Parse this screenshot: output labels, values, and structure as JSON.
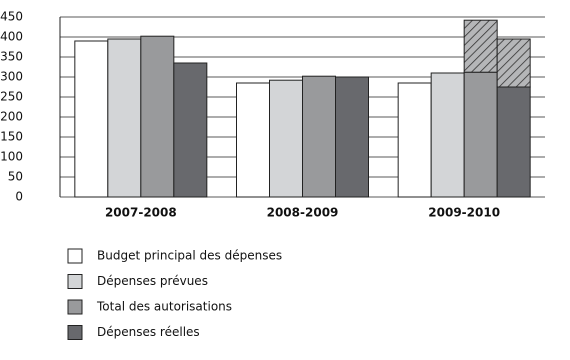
{
  "chart_data": {
    "type": "bar",
    "categories": [
      "2007-2008",
      "2008-2009",
      "2009-2010"
    ],
    "series": [
      {
        "name": "Budget principal des dépenses",
        "color": "#ffffff",
        "values": [
          390,
          285,
          285
        ]
      },
      {
        "name": "Dépenses prévues",
        "color": "#d3d5d7",
        "values": [
          395,
          292,
          310
        ]
      },
      {
        "name": "Total des autorisations",
        "color": "#999a9c",
        "values": [
          402,
          302,
          312
        ],
        "hatched": [
          null,
          null,
          130
        ]
      },
      {
        "name": "Dépenses réelles",
        "color": "#68696d",
        "values": [
          335,
          300,
          275
        ],
        "hatched": [
          null,
          null,
          120
        ]
      }
    ],
    "ylim": [
      0,
      450
    ],
    "yticks": [
      0,
      50,
      100,
      150,
      200,
      250,
      300,
      350,
      400,
      450
    ],
    "grid": true
  }
}
